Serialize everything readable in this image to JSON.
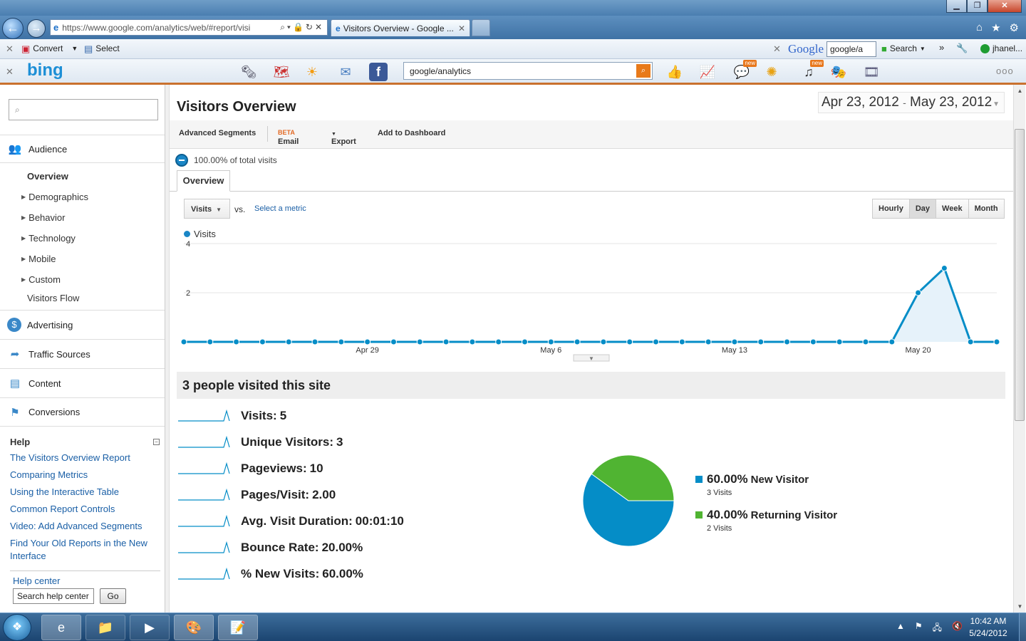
{
  "browser": {
    "url": "https://www.google.com/analytics/web/#report/visi",
    "tab_title": "Visitors Overview - Google ...",
    "toolbar1": {
      "convert": "Convert",
      "select": "Select",
      "google_logo": "Google",
      "google_search_value": "google/a",
      "search_label": "Search",
      "user": "jhanel..."
    },
    "bing": {
      "logo": "bing",
      "search_value": "google/analytics",
      "new_badge": "new"
    }
  },
  "sidebar": {
    "search_placeholder": "",
    "sections": {
      "audience": "Audience",
      "advertising": "Advertising",
      "traffic_sources": "Traffic Sources",
      "content": "Content",
      "conversions": "Conversions"
    },
    "audience_items": [
      "Overview",
      "Demographics",
      "Behavior",
      "Technology",
      "Mobile",
      "Custom",
      "Visitors Flow"
    ],
    "help": {
      "title": "Help",
      "links": [
        "The Visitors Overview Report",
        "Comparing Metrics",
        "Using the Interactive Table",
        "Common Report Controls",
        "Video: Add Advanced Segments",
        "Find Your Old Reports in the New Interface"
      ],
      "center": "Help center",
      "search_value": "Search help center",
      "go": "Go"
    }
  },
  "main": {
    "title": "Visitors Overview",
    "date_start": "Apr 23, 2012",
    "date_sep": "-",
    "date_end": "May 23, 2012",
    "actions": {
      "segments": "Advanced Segments",
      "email": "Email",
      "beta": "BETA",
      "export": "Export",
      "dashboard": "Add to Dashboard"
    },
    "segment_text": "100.00% of total visits",
    "tab": "Overview",
    "metric_select": "Visits",
    "vs": "vs.",
    "select_metric": "Select a metric",
    "granularity": [
      "Hourly",
      "Day",
      "Week",
      "Month"
    ],
    "granularity_selected": "Day",
    "legend": "Visits",
    "summary_title": "3 people visited this site",
    "metrics": [
      {
        "label": "Visits:",
        "value": "5"
      },
      {
        "label": "Unique Visitors:",
        "value": "3"
      },
      {
        "label": "Pageviews:",
        "value": "10"
      },
      {
        "label": "Pages/Visit:",
        "value": "2.00"
      },
      {
        "label": "Avg. Visit Duration:",
        "value": "00:01:10"
      },
      {
        "label": "Bounce Rate:",
        "value": "20.00%"
      },
      {
        "label": "% New Visits:",
        "value": "60.00%"
      }
    ],
    "pie_legend": [
      {
        "pct": "60.00%",
        "name": "New Visitor",
        "sub": "3 Visits"
      },
      {
        "pct": "40.00%",
        "name": "Returning Visitor",
        "sub": "2 Visits"
      }
    ]
  },
  "chart_data": [
    {
      "type": "area",
      "series": [
        {
          "name": "Visits",
          "values": [
            0,
            0,
            0,
            0,
            0,
            0,
            0,
            0,
            0,
            0,
            0,
            0,
            0,
            0,
            0,
            0,
            0,
            0,
            0,
            0,
            0,
            0,
            0,
            0,
            0,
            0,
            0,
            0,
            2,
            3,
            0,
            0
          ]
        }
      ],
      "x": [
        "Apr 22",
        "Apr 23",
        "Apr 24",
        "Apr 25",
        "Apr 26",
        "Apr 27",
        "Apr 28",
        "Apr 29",
        "Apr 30",
        "May 1",
        "May 2",
        "May 3",
        "May 4",
        "May 5",
        "May 6",
        "May 7",
        "May 8",
        "May 9",
        "May 10",
        "May 11",
        "May 12",
        "May 13",
        "May 14",
        "May 15",
        "May 16",
        "May 17",
        "May 18",
        "May 19",
        "May 20",
        "May 21",
        "May 22",
        "May 23"
      ],
      "x_tick_labels": [
        "Apr 29",
        "May 6",
        "May 13",
        "May 20"
      ],
      "y_tick_labels": [
        "4",
        "2"
      ],
      "ylim": [
        0,
        4
      ],
      "color": "#058dc7",
      "grid": true
    },
    {
      "type": "pie",
      "categories": [
        "New Visitor",
        "Returning Visitor"
      ],
      "values": [
        60,
        40
      ],
      "colors": [
        "#058dc7",
        "#50b432"
      ]
    }
  ],
  "taskbar": {
    "time": "10:42 AM",
    "date": "5/24/2012"
  }
}
